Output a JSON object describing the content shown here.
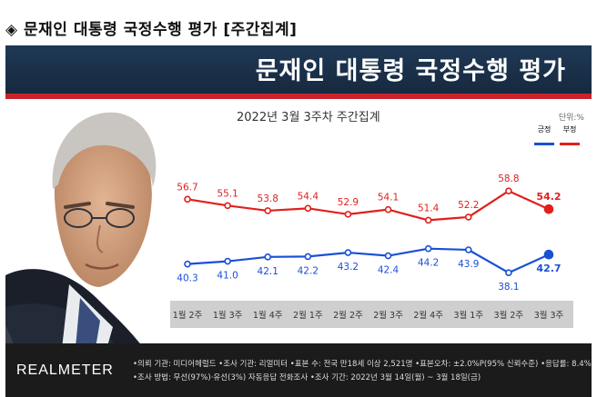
{
  "page": {
    "heading": "◈ 문재인 대통령 국정수행 평가 [주간집계]",
    "banner_title": "문재인 대통령 국정수행 평가",
    "subtitle": "2022년 3월 3주차 주간집계",
    "unit": "단위:%"
  },
  "legend": {
    "positive": "긍정",
    "negative": "부정"
  },
  "colors": {
    "positive": "#1a4fd6",
    "negative": "#e0201c",
    "axis_band": "#cfcfcf",
    "banner": "#1c3350",
    "footer": "#1b1b1b"
  },
  "footer": {
    "logo": "REALMETER",
    "line1": "•의뢰 기관: 미디어헤럴드 •조사 기관: 리얼미터 •표본 수: 전국 만18세 이상 2,521명 •표본오차: ±2.0%P(95% 신뢰수준) •응답률: 8.4%",
    "line2": "•조사 방법: 무선(97%)·유선(3%) 자동응답 전화조사 •조사 기간: 2022년 3월 14일(월) ~ 3월 18일(금)"
  },
  "chart_data": {
    "type": "line",
    "title": "",
    "subtitle": "2022년 3월 3주차 주간집계",
    "unit": "단위:%",
    "categories": [
      "1월 2주",
      "1월 3주",
      "1월 4주",
      "2월 1주",
      "2월 2주",
      "2월 3주",
      "2월 4주",
      "3월 1주",
      "3월 2주",
      "3월 3주"
    ],
    "series": [
      {
        "name": "부정",
        "color": "#e0201c",
        "values": [
          56.7,
          55.1,
          53.8,
          54.4,
          52.9,
          54.1,
          51.4,
          52.2,
          58.8,
          54.2
        ]
      },
      {
        "name": "긍정",
        "color": "#1a4fd6",
        "values": [
          40.3,
          41.0,
          42.1,
          42.2,
          43.2,
          42.4,
          44.2,
          43.9,
          38.1,
          42.7
        ]
      }
    ],
    "ylim": [
      30,
      70
    ],
    "legend_position": "top-right",
    "grid": false
  }
}
